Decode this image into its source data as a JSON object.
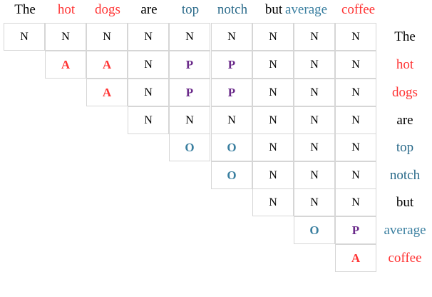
{
  "words": [
    {
      "text": "The",
      "color": "#000000"
    },
    {
      "text": "hot",
      "color": "#ff3333"
    },
    {
      "text": "dogs",
      "color": "#ff3333"
    },
    {
      "text": "are",
      "color": "#000000"
    },
    {
      "text": "top",
      "color": "#2a6a8a"
    },
    {
      "text": "notch",
      "color": "#2a6a8a"
    },
    {
      "text": "but",
      "color": "#000000"
    },
    {
      "text": "average",
      "color": "#3a7fa0"
    },
    {
      "text": "coffee",
      "color": "#ff3333"
    }
  ],
  "tag_colors": {
    "N": "#000000",
    "A": "#ff3333",
    "P": "#6a2a8a",
    "O": "#3a7fa0"
  },
  "matrix": [
    [
      "N",
      "N",
      "N",
      "N",
      "N",
      "N",
      "N",
      "N",
      "N"
    ],
    [
      "A",
      "A",
      "N",
      "P",
      "P",
      "N",
      "N",
      "N"
    ],
    [
      "A",
      "N",
      "P",
      "P",
      "N",
      "N",
      "N"
    ],
    [
      "N",
      "N",
      "N",
      "N",
      "N",
      "N"
    ],
    [
      "O",
      "O",
      "N",
      "N",
      "N"
    ],
    [
      "O",
      "N",
      "N",
      "N"
    ],
    [
      "N",
      "N",
      "N"
    ],
    [
      "O",
      "P"
    ],
    [
      "A"
    ]
  ]
}
